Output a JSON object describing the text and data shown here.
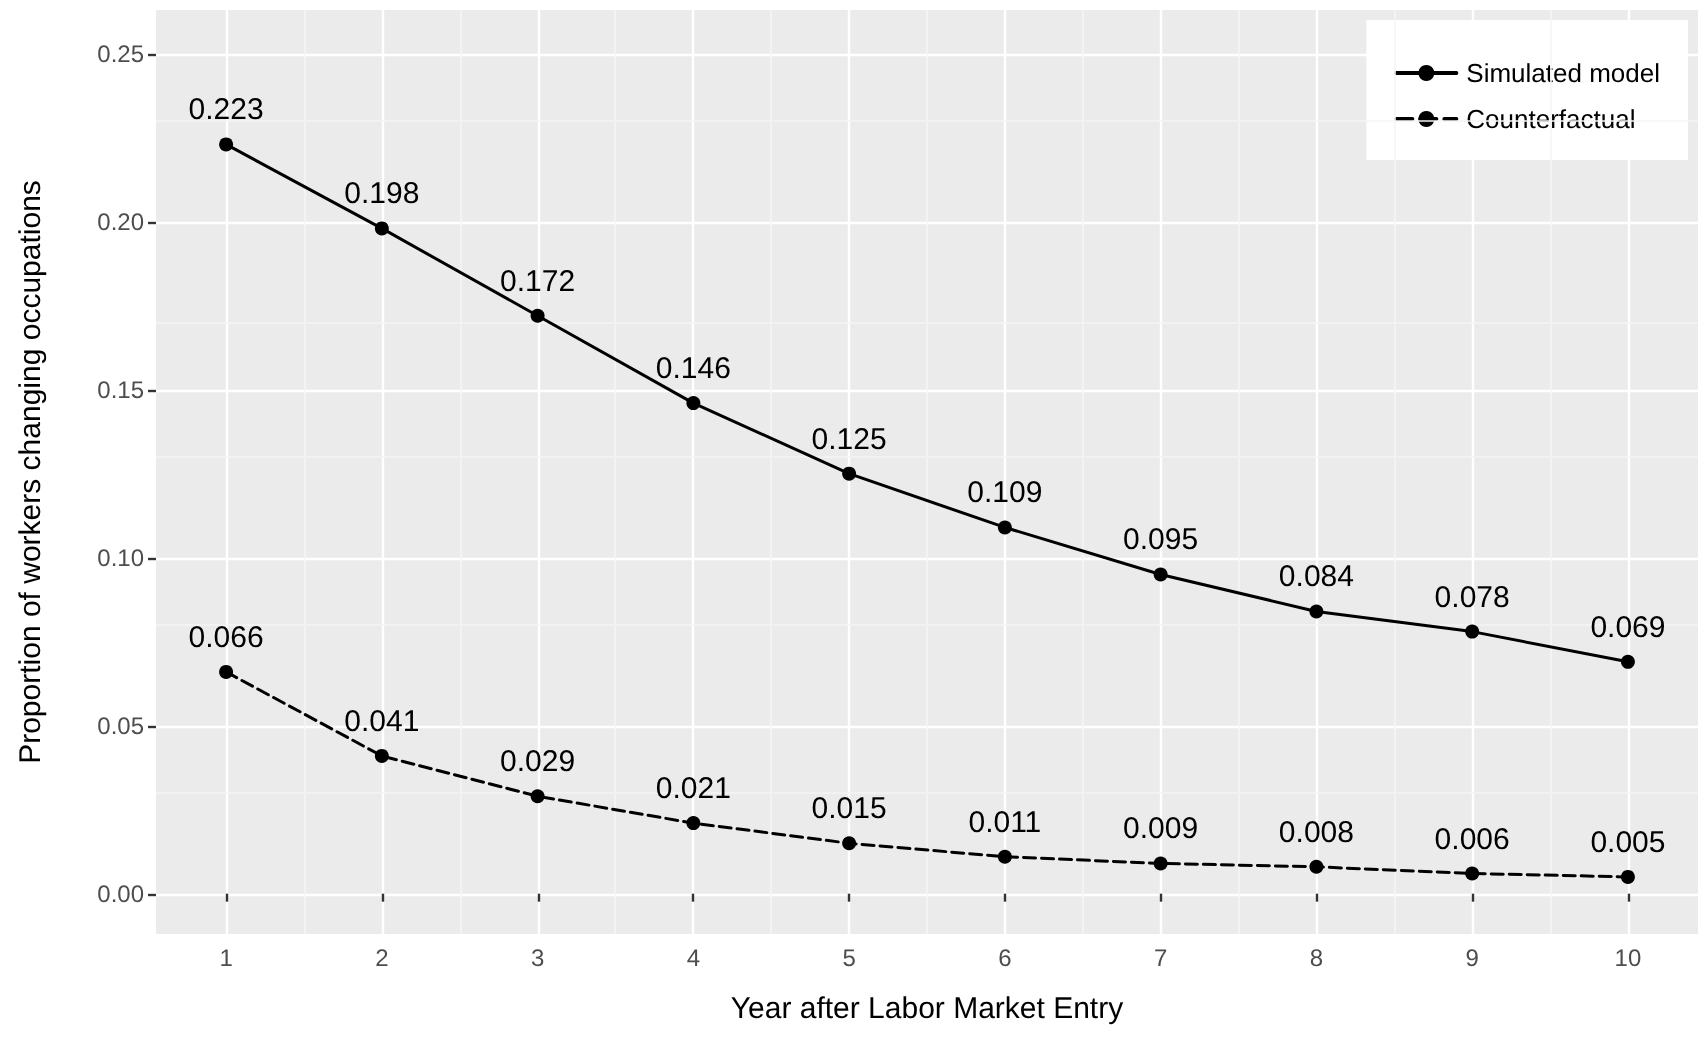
{
  "chart_data": {
    "type": "line",
    "xlabel": "Year after Labor Market Entry",
    "ylabel": "Proportion of workers changing occupations",
    "x": [
      1,
      2,
      3,
      4,
      5,
      6,
      7,
      8,
      9,
      10
    ],
    "series": [
      {
        "name": "Simulated model",
        "color": "#000000",
        "line_style": "solid",
        "values": [
          0.223,
          0.198,
          0.172,
          0.146,
          0.125,
          0.109,
          0.095,
          0.084,
          0.078,
          0.069
        ]
      },
      {
        "name": "Counterfactual",
        "color": "#000000",
        "line_style": "dashed",
        "values": [
          0.066,
          0.041,
          0.029,
          0.021,
          0.015,
          0.011,
          0.009,
          0.008,
          0.006,
          0.005
        ]
      }
    ],
    "xlim": [
      0.55,
      10.45
    ],
    "xticks": [
      1,
      2,
      3,
      4,
      5,
      6,
      7,
      8,
      9,
      10
    ],
    "ylim": [
      -0.012,
      0.263
    ],
    "yticks": [
      {
        "value": 0,
        "label": "0.00"
      },
      {
        "value": 0.05,
        "label": "0.05"
      },
      {
        "value": 0.1,
        "label": "0.10"
      },
      {
        "value": 0.15,
        "label": "0.15"
      },
      {
        "value": 0.2,
        "label": "0.20"
      },
      {
        "value": 0.25,
        "label": "0.25"
      }
    ],
    "marker": "circle",
    "data_labels": true,
    "grid": true,
    "legend": "top right"
  }
}
